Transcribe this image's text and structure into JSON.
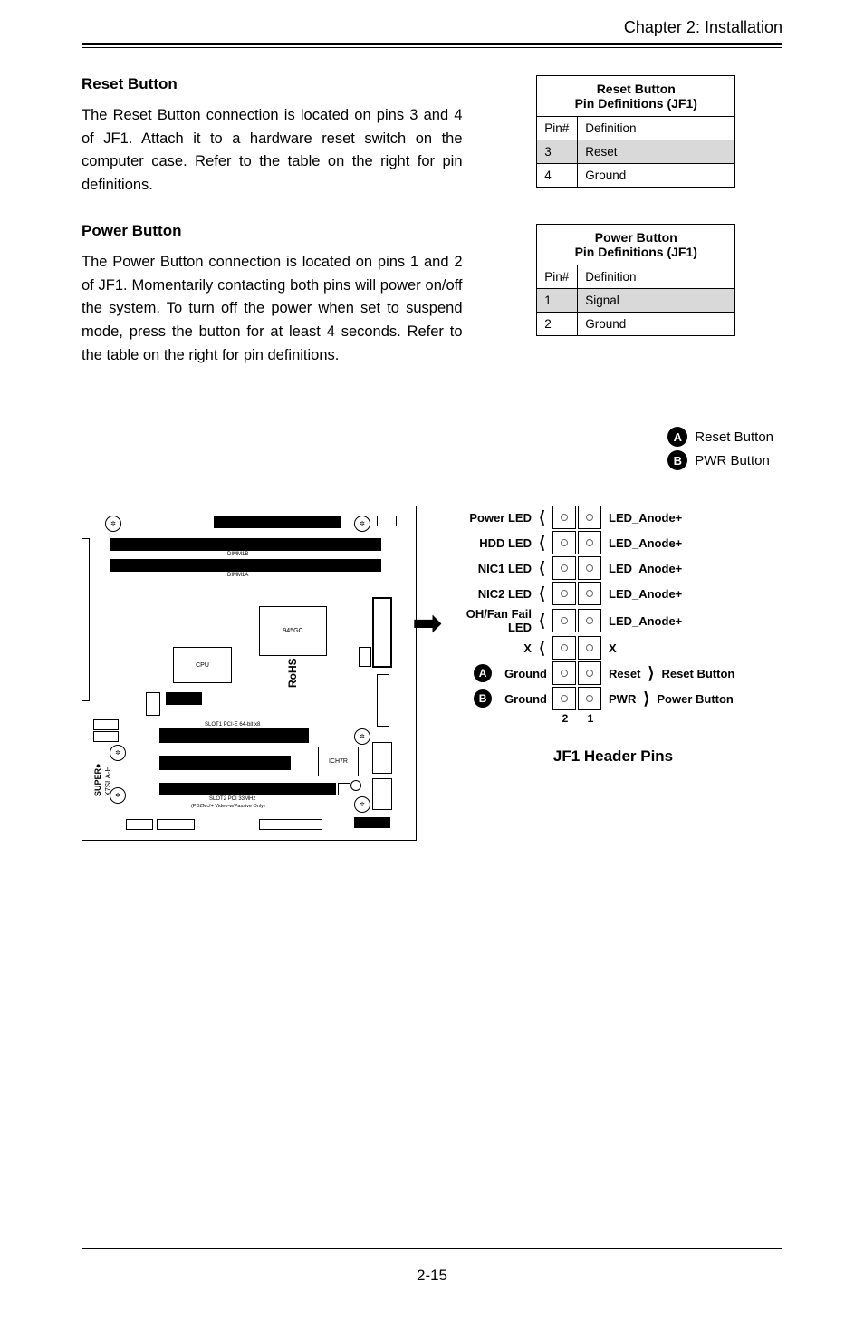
{
  "header": {
    "chapter": "Chapter 2: Installation"
  },
  "reset": {
    "heading": "Reset Button",
    "para": "The Reset Button connection is located on pins 3 and 4 of JF1. Attach it to a hardware reset switch on the computer case. Refer to the table on the right for pin definitions.",
    "table": {
      "caption_l1": "Reset Button",
      "caption_l2": "Pin Definitions (JF1)",
      "col1": "Pin#",
      "col2": "Definition",
      "rows": [
        {
          "pin": "3",
          "def": "Reset",
          "shaded": true
        },
        {
          "pin": "4",
          "def": "Ground",
          "shaded": false
        }
      ]
    }
  },
  "power": {
    "heading": "Power Button",
    "para": "The Power Button connection is located on pins 1 and 2 of JF1. Momentarily contacting both pins will power on/off the system. To turn off the power when set to suspend mode, press the button for at least 4 seconds. Refer to the table on the right for pin definitions.",
    "table": {
      "caption_l1": "Power Button",
      "caption_l2": "Pin Definitions (JF1)",
      "col1": "Pin#",
      "col2": "Definition",
      "rows": [
        {
          "pin": "1",
          "def": "Signal",
          "shaded": true
        },
        {
          "pin": "2",
          "def": "Ground",
          "shaded": false
        }
      ]
    }
  },
  "legend": {
    "a": "Reset Button",
    "b": "PWR Button"
  },
  "mobo": {
    "labels": {
      "dimm1b": "DIMM1B",
      "dimm1a": "DIMM1A",
      "cpu": "CPU",
      "nb": "945GC",
      "sb": "ICH7R",
      "slot1": "SLOT1 PCI-E 64-bit x8",
      "slot2": "SLOT2 PCI 33MHz",
      "slot2b": "(PDZMcf+ Video-w/Passive Only)",
      "brand": "X7SLA-H",
      "rohs": "RoHS"
    }
  },
  "jf1": {
    "title": "JF1 Header Pins",
    "bottom_left": "2",
    "bottom_right": "1",
    "rows": [
      {
        "left": "Power LED",
        "right": "LED_Anode+",
        "bracket_left": true,
        "bracket_right": false,
        "bullet": ""
      },
      {
        "left": "HDD LED",
        "right": "LED_Anode+",
        "bracket_left": true,
        "bracket_right": false,
        "bullet": ""
      },
      {
        "left": "NIC1 LED",
        "right": "LED_Anode+",
        "bracket_left": true,
        "bracket_right": false,
        "bullet": ""
      },
      {
        "left": "NIC2 LED",
        "right": "LED_Anode+",
        "bracket_left": true,
        "bracket_right": false,
        "bullet": ""
      },
      {
        "left": "OH/Fan Fail LED",
        "right": "LED_Anode+",
        "bracket_left": true,
        "bracket_right": false,
        "bullet": ""
      },
      {
        "left": "X",
        "right": "X",
        "bracket_left": true,
        "bracket_right": false,
        "bullet": ""
      },
      {
        "left": "Ground",
        "right": "Reset",
        "right_extra": "Reset Button",
        "bracket_left": false,
        "bracket_right": true,
        "bullet": "A"
      },
      {
        "left": "Ground",
        "right": "PWR",
        "right_extra": "Power Button",
        "bracket_left": false,
        "bracket_right": true,
        "bullet": "B"
      }
    ]
  },
  "page": {
    "num": "2-15"
  }
}
